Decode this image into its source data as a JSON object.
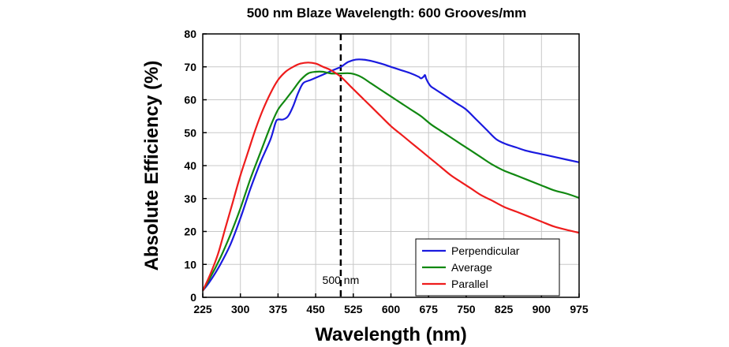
{
  "chart_data": {
    "type": "line",
    "title": "500 nm Blaze Wavelength: 600 Grooves/mm",
    "xlabel": "Wavelength (nm)",
    "ylabel": "Absolute Efficiency (%)",
    "xlim": [
      225,
      975
    ],
    "ylim": [
      0,
      80
    ],
    "xticks": [
      225,
      300,
      375,
      450,
      525,
      600,
      675,
      750,
      825,
      900,
      975
    ],
    "yticks": [
      0,
      10,
      20,
      30,
      40,
      50,
      60,
      70,
      80
    ],
    "grid": true,
    "legend_position": "bottom-right",
    "annotation": {
      "label": "500 nm",
      "x": 500
    },
    "series": [
      {
        "name": "Perpendicular",
        "color": "#1a1adf",
        "points": [
          [
            225,
            2
          ],
          [
            240,
            5
          ],
          [
            260,
            10
          ],
          [
            280,
            16
          ],
          [
            300,
            24
          ],
          [
            320,
            33
          ],
          [
            340,
            41
          ],
          [
            360,
            48
          ],
          [
            370,
            53
          ],
          [
            375,
            54
          ],
          [
            385,
            54
          ],
          [
            395,
            55
          ],
          [
            405,
            58
          ],
          [
            415,
            62
          ],
          [
            425,
            65
          ],
          [
            440,
            66
          ],
          [
            455,
            67
          ],
          [
            470,
            68
          ],
          [
            485,
            69
          ],
          [
            500,
            70
          ],
          [
            515,
            71.5
          ],
          [
            530,
            72.2
          ],
          [
            545,
            72.2
          ],
          [
            560,
            71.8
          ],
          [
            580,
            71
          ],
          [
            600,
            70
          ],
          [
            620,
            69
          ],
          [
            640,
            68
          ],
          [
            655,
            67
          ],
          [
            660,
            66.5
          ],
          [
            665,
            67
          ],
          [
            668,
            67.5
          ],
          [
            670,
            66.5
          ],
          [
            675,
            65
          ],
          [
            680,
            64
          ],
          [
            690,
            63
          ],
          [
            710,
            61
          ],
          [
            730,
            59
          ],
          [
            750,
            57
          ],
          [
            770,
            54
          ],
          [
            790,
            51
          ],
          [
            810,
            48
          ],
          [
            830,
            46.5
          ],
          [
            850,
            45.5
          ],
          [
            870,
            44.5
          ],
          [
            900,
            43.5
          ],
          [
            930,
            42.5
          ],
          [
            975,
            41
          ]
        ]
      },
      {
        "name": "Average",
        "color": "#118811",
        "points": [
          [
            225,
            2
          ],
          [
            240,
            6
          ],
          [
            260,
            12
          ],
          [
            280,
            19
          ],
          [
            300,
            27
          ],
          [
            320,
            36
          ],
          [
            340,
            44
          ],
          [
            360,
            52
          ],
          [
            375,
            57
          ],
          [
            390,
            60
          ],
          [
            405,
            63
          ],
          [
            420,
            66
          ],
          [
            435,
            68
          ],
          [
            450,
            68.5
          ],
          [
            465,
            68.5
          ],
          [
            480,
            68
          ],
          [
            500,
            68
          ],
          [
            520,
            68
          ],
          [
            540,
            67
          ],
          [
            560,
            65
          ],
          [
            580,
            63
          ],
          [
            600,
            61
          ],
          [
            620,
            59
          ],
          [
            640,
            57
          ],
          [
            660,
            55
          ],
          [
            680,
            52.5
          ],
          [
            700,
            50.5
          ],
          [
            720,
            48.5
          ],
          [
            740,
            46.5
          ],
          [
            760,
            44.5
          ],
          [
            780,
            42.5
          ],
          [
            800,
            40.5
          ],
          [
            825,
            38.5
          ],
          [
            850,
            37
          ],
          [
            875,
            35.5
          ],
          [
            900,
            34
          ],
          [
            925,
            32.5
          ],
          [
            950,
            31.5
          ],
          [
            975,
            30.2
          ]
        ]
      },
      {
        "name": "Parallel",
        "color": "#ee1c1c",
        "points": [
          [
            225,
            2
          ],
          [
            240,
            7
          ],
          [
            255,
            13
          ],
          [
            270,
            21
          ],
          [
            285,
            29
          ],
          [
            300,
            37
          ],
          [
            315,
            44
          ],
          [
            330,
            51
          ],
          [
            345,
            57
          ],
          [
            360,
            62
          ],
          [
            375,
            66
          ],
          [
            390,
            68.5
          ],
          [
            405,
            70
          ],
          [
            420,
            71
          ],
          [
            435,
            71.3
          ],
          [
            450,
            71
          ],
          [
            465,
            70
          ],
          [
            480,
            69
          ],
          [
            500,
            67
          ],
          [
            520,
            64
          ],
          [
            540,
            61
          ],
          [
            560,
            58
          ],
          [
            580,
            55
          ],
          [
            600,
            52
          ],
          [
            620,
            49.5
          ],
          [
            640,
            47
          ],
          [
            660,
            44.5
          ],
          [
            680,
            42
          ],
          [
            700,
            39.5
          ],
          [
            720,
            37
          ],
          [
            740,
            35
          ],
          [
            760,
            33
          ],
          [
            780,
            31
          ],
          [
            800,
            29.5
          ],
          [
            825,
            27.5
          ],
          [
            850,
            26
          ],
          [
            875,
            24.5
          ],
          [
            900,
            23
          ],
          [
            925,
            21.5
          ],
          [
            950,
            20.5
          ],
          [
            975,
            19.6
          ]
        ]
      }
    ]
  }
}
